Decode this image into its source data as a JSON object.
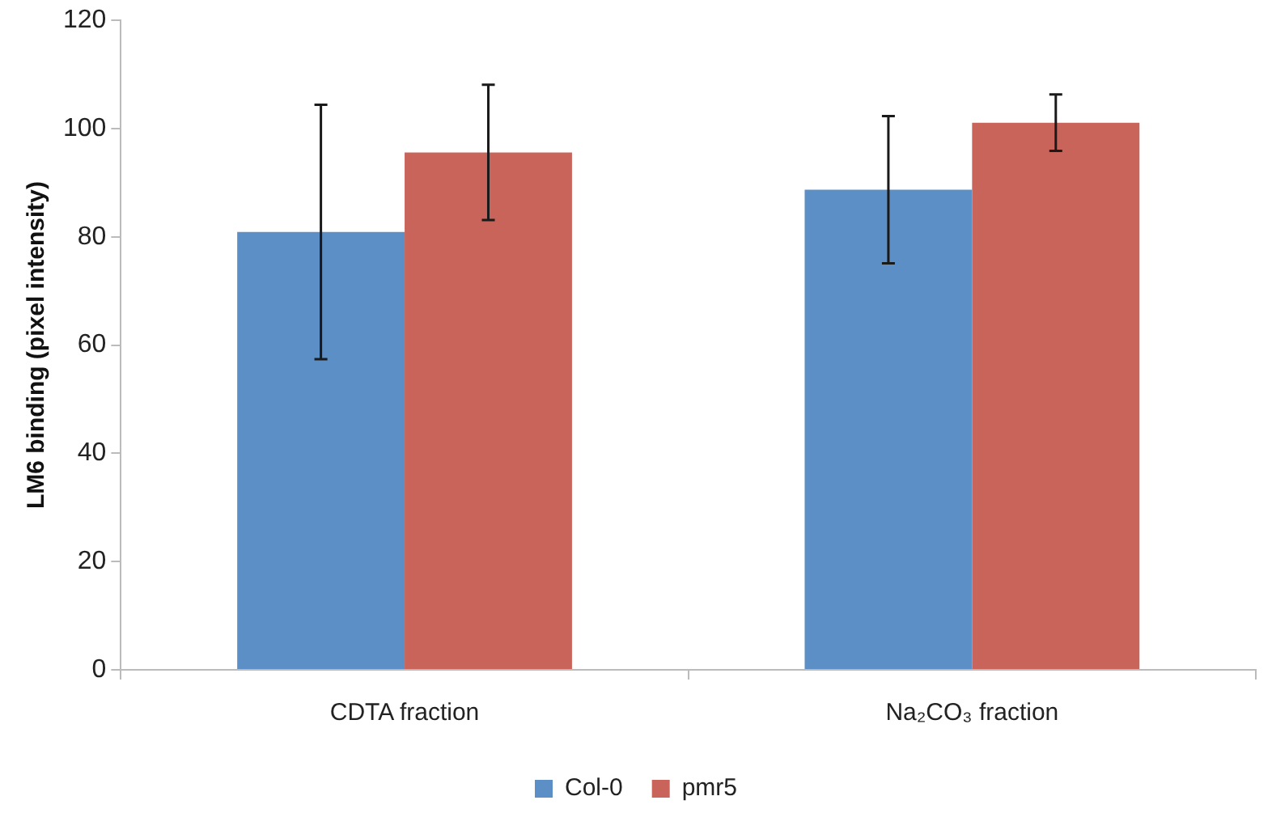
{
  "chart_data": {
    "type": "bar",
    "ylabel": "LM6 binding (pixel intensity)",
    "categories": [
      "CDTA fraction",
      "Na₂CO₃ fraction"
    ],
    "series": [
      {
        "name": "Col-0",
        "color": "#5b8fc5",
        "values": [
          80.9,
          88.7
        ],
        "errors": [
          23.5,
          13.6
        ]
      },
      {
        "name": "pmr5",
        "color": "#c9645b",
        "values": [
          95.6,
          101.1
        ],
        "errors": [
          12.5,
          5.2
        ]
      }
    ],
    "ylim": [
      0,
      120
    ],
    "yticks": [
      0,
      20,
      40,
      60,
      80,
      100,
      120
    ],
    "grid": false,
    "legend": "bottom"
  }
}
